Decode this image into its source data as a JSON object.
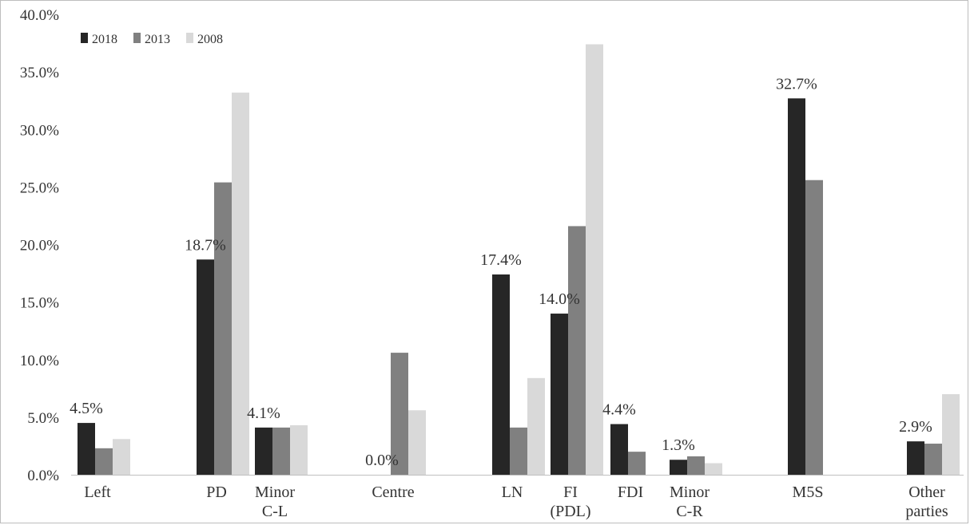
{
  "chart_data": {
    "type": "bar",
    "categories": [
      "Left",
      "PD",
      "Minor C-L",
      "Centre",
      "LN",
      "FI (PDL)",
      "FDI",
      "Minor C-R",
      "M5S",
      "Other parties"
    ],
    "category_lines": [
      [
        "Left"
      ],
      [
        "PD"
      ],
      [
        "Minor",
        "C-L"
      ],
      [
        "Centre"
      ],
      [
        "LN"
      ],
      [
        "FI",
        "(PDL)"
      ],
      [
        "FDI"
      ],
      [
        "Minor",
        "C-R"
      ],
      [
        "M5S"
      ],
      [
        "Other",
        "parties"
      ]
    ],
    "series": [
      {
        "name": "2018",
        "color": "#262626",
        "values": [
          4.5,
          18.7,
          4.1,
          0.0,
          17.4,
          14.0,
          4.4,
          1.3,
          32.7,
          2.9
        ],
        "labels": [
          "4.5%",
          "18.7%",
          "4.1%",
          "0.0%",
          "17.4%",
          "14.0%",
          "4.4%",
          "1.3%",
          "32.7%",
          "2.9%"
        ]
      },
      {
        "name": "2013",
        "color": "#808080",
        "values": [
          2.3,
          25.4,
          4.1,
          10.6,
          4.1,
          21.6,
          2.0,
          1.6,
          25.6,
          2.7
        ]
      },
      {
        "name": "2008",
        "color": "#d9d9d9",
        "values": [
          3.1,
          33.2,
          4.3,
          5.6,
          8.4,
          37.4,
          0,
          1.0,
          0,
          7.0
        ]
      }
    ],
    "y_ticks": [
      "0.0%",
      "5.0%",
      "10.0%",
      "15.0%",
      "20.0%",
      "25.0%",
      "30.0%",
      "35.0%",
      "40.0%"
    ],
    "ylim": [
      0,
      40
    ],
    "legend_position": "top-left",
    "grid": false
  }
}
